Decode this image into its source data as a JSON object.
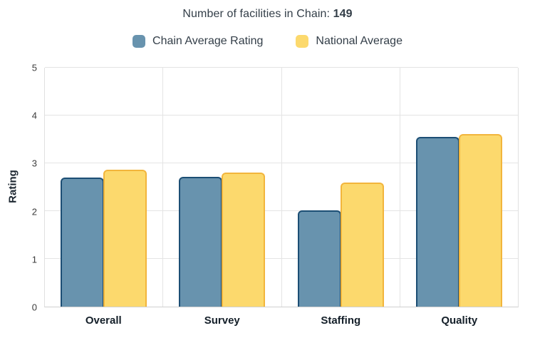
{
  "title": {
    "prefix": "Number of facilities in Chain: ",
    "count": "149"
  },
  "legend": [
    {
      "label": "Chain Average Rating",
      "color": "#6893ae"
    },
    {
      "label": "National Average",
      "color": "#fcd96d"
    }
  ],
  "chart_data": {
    "type": "bar",
    "title": "Number of facilities in Chain: 149",
    "categories": [
      "Overall",
      "Survey",
      "Staffing",
      "Quality"
    ],
    "series": [
      {
        "name": "Chain Average Rating",
        "values": [
          2.7,
          2.72,
          2.01,
          3.55
        ],
        "fill": "#6893ae",
        "border": "#1c4e74"
      },
      {
        "name": "National Average",
        "values": [
          2.87,
          2.8,
          2.59,
          3.61
        ],
        "fill": "#fcd96d",
        "border": "#f2b53c"
      }
    ],
    "xlabel": "",
    "ylabel": "Rating",
    "ylim": [
      0,
      5
    ],
    "yticks": [
      0,
      1,
      2,
      3,
      4,
      5
    ],
    "grid": true,
    "legend_position": "top"
  },
  "colors": {
    "chain_fill": "#6893ae",
    "chain_border": "#1c4e74",
    "national_fill": "#fcd96d",
    "national_border": "#f2b53c",
    "gridline": "#e4e4e4",
    "text": "#333e48"
  }
}
